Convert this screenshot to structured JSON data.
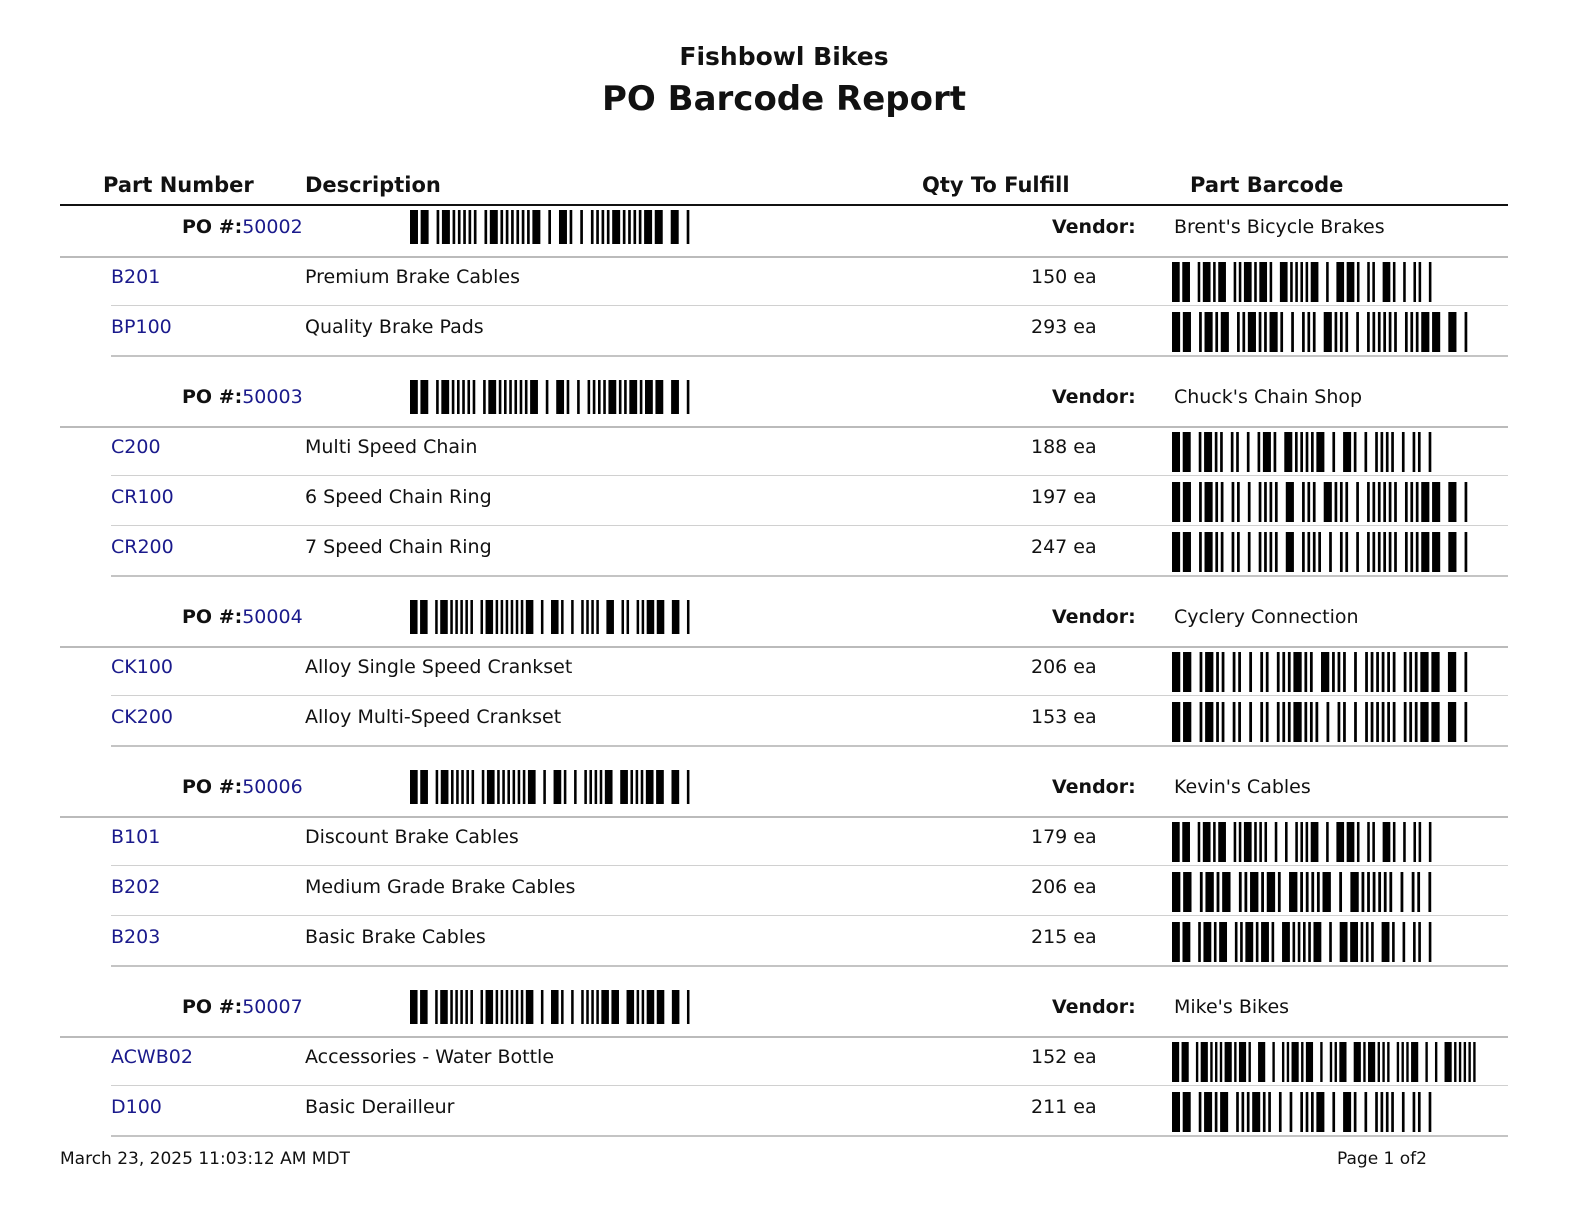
{
  "header": {
    "company": "Fishbowl Bikes",
    "title": "PO Barcode Report"
  },
  "columns": {
    "part_number": "Part Number",
    "description": "Description",
    "qty": "Qty To Fulfill",
    "part_barcode": "Part Barcode"
  },
  "labels": {
    "po": "PO #:",
    "vendor": "Vendor:"
  },
  "groups": [
    {
      "po_number": "50002",
      "vendor": "Brent's Bicycle Brakes",
      "items": [
        {
          "part": "B201",
          "description": "Premium Brake Cables",
          "qty": "150 ea"
        },
        {
          "part": "BP100",
          "description": "Quality Brake Pads",
          "qty": "293 ea"
        }
      ]
    },
    {
      "po_number": "50003",
      "vendor": "Chuck's Chain Shop",
      "items": [
        {
          "part": "C200",
          "description": "Multi Speed Chain",
          "qty": "188 ea"
        },
        {
          "part": "CR100",
          "description": "6 Speed Chain Ring",
          "qty": "197 ea"
        },
        {
          "part": "CR200",
          "description": "7 Speed Chain Ring",
          "qty": "247 ea"
        }
      ]
    },
    {
      "po_number": "50004",
      "vendor": "Cyclery Connection",
      "items": [
        {
          "part": "CK100",
          "description": "Alloy Single Speed Crankset",
          "qty": "206 ea"
        },
        {
          "part": "CK200",
          "description": "Alloy Multi-Speed Crankset",
          "qty": "153 ea"
        }
      ]
    },
    {
      "po_number": "50006",
      "vendor": "Kevin's Cables",
      "items": [
        {
          "part": "B101",
          "description": "Discount Brake Cables",
          "qty": "179 ea"
        },
        {
          "part": "B202",
          "description": "Medium Grade Brake Cables",
          "qty": "206 ea"
        },
        {
          "part": "B203",
          "description": "Basic Brake Cables",
          "qty": "215 ea"
        }
      ]
    },
    {
      "po_number": "50007",
      "vendor": "Mike's Bikes",
      "items": [
        {
          "part": "ACWB02",
          "description": "Accessories - Water Bottle",
          "qty": "152 ea"
        },
        {
          "part": "D100",
          "description": "Basic Derailleur",
          "qty": "211 ea"
        }
      ]
    }
  ],
  "footer": {
    "timestamp": "March 23, 2025 11:03:12 AM MDT",
    "page": "Page 1 of2"
  }
}
